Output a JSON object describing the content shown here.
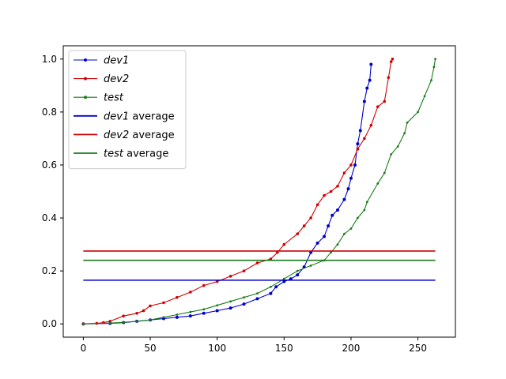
{
  "chart_data": {
    "type": "line",
    "title": "",
    "xlabel": "",
    "ylabel": "",
    "xlim": [
      -15,
      278
    ],
    "ylim": [
      -0.05,
      1.05
    ],
    "x_ticks": [
      0,
      50,
      100,
      150,
      200,
      250
    ],
    "y_ticks": [
      0.0,
      0.2,
      0.4,
      0.6,
      0.8,
      1.0
    ],
    "x_tick_labels": [
      "0",
      "50",
      "100",
      "150",
      "200",
      "250"
    ],
    "y_tick_labels": [
      "0.0",
      "0.2",
      "0.4",
      "0.6",
      "0.8",
      "1.0"
    ],
    "grid": false,
    "legend_position": "top-left",
    "series": [
      {
        "name_italic": "dev1",
        "name_suffix": "",
        "color": "#0000cc",
        "marker": "dot",
        "points": [
          [
            0,
            0
          ],
          [
            20,
            0.002
          ],
          [
            30,
            0.005
          ],
          [
            40,
            0.01
          ],
          [
            50,
            0.015
          ],
          [
            60,
            0.02
          ],
          [
            70,
            0.025
          ],
          [
            80,
            0.03
          ],
          [
            90,
            0.04
          ],
          [
            100,
            0.05
          ],
          [
            110,
            0.06
          ],
          [
            120,
            0.075
          ],
          [
            130,
            0.095
          ],
          [
            140,
            0.115
          ],
          [
            144,
            0.14
          ],
          [
            150,
            0.16
          ],
          [
            155,
            0.17
          ],
          [
            160,
            0.185
          ],
          [
            165,
            0.215
          ],
          [
            170,
            0.27
          ],
          [
            175,
            0.305
          ],
          [
            180,
            0.33
          ],
          [
            183,
            0.37
          ],
          [
            186,
            0.41
          ],
          [
            190,
            0.43
          ],
          [
            195,
            0.47
          ],
          [
            198,
            0.51
          ],
          [
            200,
            0.55
          ],
          [
            203,
            0.6
          ],
          [
            205,
            0.68
          ],
          [
            207,
            0.73
          ],
          [
            210,
            0.84
          ],
          [
            212,
            0.89
          ],
          [
            214,
            0.92
          ],
          [
            215,
            0.98
          ]
        ]
      },
      {
        "name_italic": "dev2",
        "name_suffix": "",
        "color": "#d00000",
        "marker": "star",
        "points": [
          [
            0,
            0
          ],
          [
            10,
            0.002
          ],
          [
            15,
            0.005
          ],
          [
            20,
            0.01
          ],
          [
            30,
            0.03
          ],
          [
            40,
            0.04
          ],
          [
            45,
            0.05
          ],
          [
            50,
            0.068
          ],
          [
            60,
            0.08
          ],
          [
            70,
            0.1
          ],
          [
            80,
            0.12
          ],
          [
            90,
            0.145
          ],
          [
            100,
            0.16
          ],
          [
            110,
            0.18
          ],
          [
            120,
            0.2
          ],
          [
            130,
            0.23
          ],
          [
            140,
            0.245
          ],
          [
            145,
            0.27
          ],
          [
            150,
            0.3
          ],
          [
            160,
            0.34
          ],
          [
            165,
            0.37
          ],
          [
            170,
            0.4
          ],
          [
            175,
            0.45
          ],
          [
            180,
            0.485
          ],
          [
            185,
            0.5
          ],
          [
            190,
            0.52
          ],
          [
            195,
            0.57
          ],
          [
            200,
            0.6
          ],
          [
            205,
            0.66
          ],
          [
            210,
            0.7
          ],
          [
            215,
            0.75
          ],
          [
            220,
            0.82
          ],
          [
            225,
            0.84
          ],
          [
            228,
            0.93
          ],
          [
            230,
            0.99
          ],
          [
            231,
            1.0
          ]
        ]
      },
      {
        "name_italic": "test",
        "name_suffix": "",
        "color": "#1a7a1a",
        "marker": "dot-small",
        "points": [
          [
            0,
            0
          ],
          [
            20,
            0.003
          ],
          [
            30,
            0.006
          ],
          [
            40,
            0.01
          ],
          [
            50,
            0.015
          ],
          [
            60,
            0.025
          ],
          [
            70,
            0.035
          ],
          [
            80,
            0.045
          ],
          [
            90,
            0.055
          ],
          [
            100,
            0.07
          ],
          [
            110,
            0.085
          ],
          [
            120,
            0.1
          ],
          [
            130,
            0.115
          ],
          [
            140,
            0.14
          ],
          [
            150,
            0.17
          ],
          [
            160,
            0.2
          ],
          [
            170,
            0.22
          ],
          [
            180,
            0.24
          ],
          [
            185,
            0.27
          ],
          [
            190,
            0.3
          ],
          [
            195,
            0.34
          ],
          [
            200,
            0.36
          ],
          [
            205,
            0.4
          ],
          [
            210,
            0.43
          ],
          [
            212,
            0.46
          ],
          [
            220,
            0.53
          ],
          [
            225,
            0.57
          ],
          [
            230,
            0.64
          ],
          [
            235,
            0.67
          ],
          [
            240,
            0.72
          ],
          [
            242,
            0.76
          ],
          [
            250,
            0.8
          ],
          [
            255,
            0.86
          ],
          [
            260,
            0.92
          ],
          [
            262,
            0.97
          ],
          [
            263,
            1.0
          ]
        ]
      }
    ],
    "averages": [
      {
        "name_italic": "dev1",
        "name_suffix": " average",
        "color": "#0000cc",
        "y": 0.165
      },
      {
        "name_italic": "dev2",
        "name_suffix": " average",
        "color": "#d00000",
        "y": 0.275
      },
      {
        "name_italic": "test",
        "name_suffix": " average",
        "color": "#1a7a1a",
        "y": 0.24
      }
    ],
    "average_x_range": [
      0,
      263
    ]
  }
}
